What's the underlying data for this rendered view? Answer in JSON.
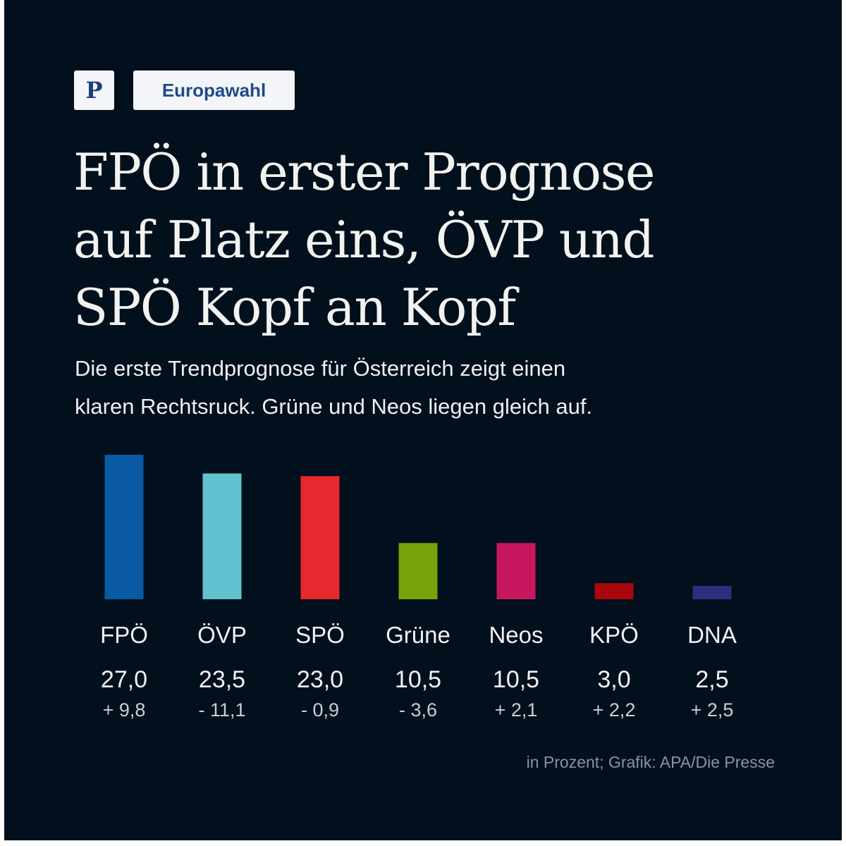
{
  "header": {
    "logo_letter": "P",
    "tag": "Europawahl"
  },
  "headline": {
    "line1": "FPÖ in erster Prognose",
    "line2": "auf Platz eins, ÖVP und",
    "line3": "SPÖ Kopf an Kopf"
  },
  "subtitle": {
    "line1": "Die erste Trendprognose für Österreich zeigt einen",
    "line2": "klaren Rechtsruck. Grüne und Neos liegen gleich auf."
  },
  "source": "in Prozent; Grafik: APA/Die Presse",
  "chart_data": {
    "type": "bar",
    "title": "FPÖ in erster Prognose auf Platz eins, ÖVP und SPÖ Kopf an Kopf",
    "unit": "in Prozent",
    "categories": [
      "FPÖ",
      "ÖVP",
      "SPÖ",
      "Grüne",
      "Neos",
      "KPÖ",
      "DNA"
    ],
    "values": [
      27.0,
      23.5,
      23.0,
      10.5,
      10.5,
      3.0,
      2.5
    ],
    "value_labels": [
      "27,0",
      "23,5",
      "23,0",
      "10,5",
      "10,5",
      "3,0",
      "2,5"
    ],
    "change_labels": [
      "+ 9,8",
      "- 11,1",
      "- 0,9",
      "- 3,6",
      "+ 2,1",
      "+ 2,2",
      "+ 2,5"
    ],
    "changes": [
      9.8,
      -11.1,
      -0.9,
      -3.6,
      2.1,
      2.2,
      2.5
    ],
    "colors": [
      "#0a5aa3",
      "#62c3d0",
      "#e5292e",
      "#76a20a",
      "#c8175f",
      "#a8070e",
      "#2b2f7e"
    ],
    "ylim": [
      0,
      27
    ],
    "grid": false,
    "legend": "none"
  }
}
